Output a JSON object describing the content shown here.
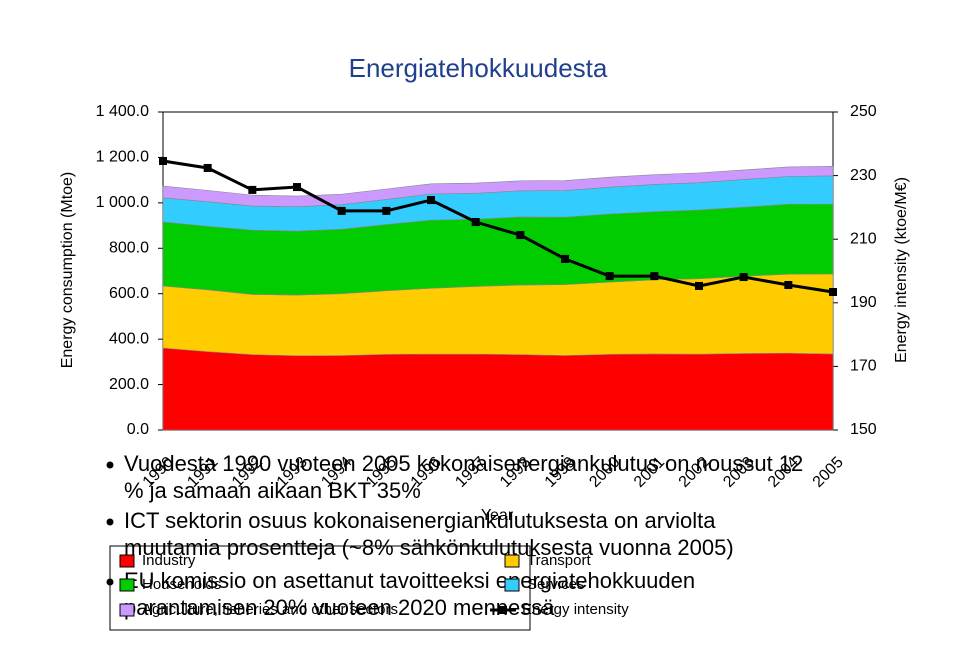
{
  "slide": {
    "title": "Energiatehokkuudesta",
    "bullets": [
      "Vuodesta 1990 vuoteen 2005 kokonaisenergiankulutus on noussut 12 % ja samaan aikaan BKT 35%",
      "ICT sektorin osuus kokonaisenergiankulutuksesta on arviolta muutamia prosentteja (~8% sähkönkulutuksesta vuonna 2005)",
      "EU komissio on asettanut tavoitteeksi energiatehokkuuden parantamisen 20% vuoteen 2020 mennessä"
    ]
  },
  "chart_data": {
    "type": "stacked-area",
    "xlabel": "Year",
    "ylabel": "Energy consumption (Mtoe)",
    "y2label": "Energy intensity (ktoe/M€)",
    "categories": [
      "1990",
      "1991",
      "1992",
      "1993",
      "1994",
      "1995",
      "1996",
      "1997",
      "1998",
      "1999",
      "2000",
      "2001",
      "2002",
      "2003",
      "2004",
      "2005"
    ],
    "ylim": [
      0,
      1400
    ],
    "yticks": [
      {
        "value": 0,
        "label": "0.0"
      },
      {
        "value": 200,
        "label": "200.0"
      },
      {
        "value": 400,
        "label": "400.0"
      },
      {
        "value": 600,
        "label": "600.0"
      },
      {
        "value": 800,
        "label": "800.0"
      },
      {
        "value": 1000,
        "label": "1 000.0"
      },
      {
        "value": 1200,
        "label": "1 200.0"
      },
      {
        "value": 1400,
        "label": "1 400.0"
      }
    ],
    "y2lim": [
      150,
      250
    ],
    "y2ticks": [
      150,
      170,
      190,
      210,
      230,
      250
    ],
    "series": [
      {
        "name": "Industry",
        "color": "#ff0000",
        "values": [
          361,
          345,
          332,
          327,
          328,
          333,
          334,
          334,
          332,
          328,
          333,
          335,
          334,
          337,
          338,
          335
        ]
      },
      {
        "name": "Transport",
        "color": "#ffcc00",
        "values": [
          273,
          272,
          265,
          267,
          272,
          280,
          290,
          298,
          306,
          312,
          318,
          326,
          332,
          340,
          348,
          352
        ]
      },
      {
        "name": "Households",
        "color": "#00cc00",
        "values": [
          282,
          280,
          283,
          282,
          284,
          292,
          300,
          296,
          300,
          297,
          300,
          300,
          303,
          304,
          308,
          308
        ]
      },
      {
        "name": "Services",
        "color": "#33ccff",
        "values": [
          106,
          108,
          106,
          107,
          108,
          110,
          115,
          114,
          115,
          117,
          118,
          120,
          120,
          122,
          122,
          124
        ]
      },
      {
        "name": "Agriculture, fisheries and other sectors",
        "color": "#cc99ff",
        "values": [
          52,
          50,
          48,
          47,
          46,
          46,
          45,
          45,
          44,
          44,
          44,
          43,
          43,
          42,
          42,
          42
        ]
      },
      {
        "name": "Energy intensity",
        "color": "#000000",
        "type": "line",
        "axis": "y2",
        "values": [
          234.6,
          232.4,
          225.5,
          226.4,
          218.9,
          218.9,
          222.3,
          215.4,
          211.3,
          203.8,
          198.4,
          198.4,
          195.3,
          198.1,
          195.6,
          193.4
        ]
      }
    ]
  }
}
